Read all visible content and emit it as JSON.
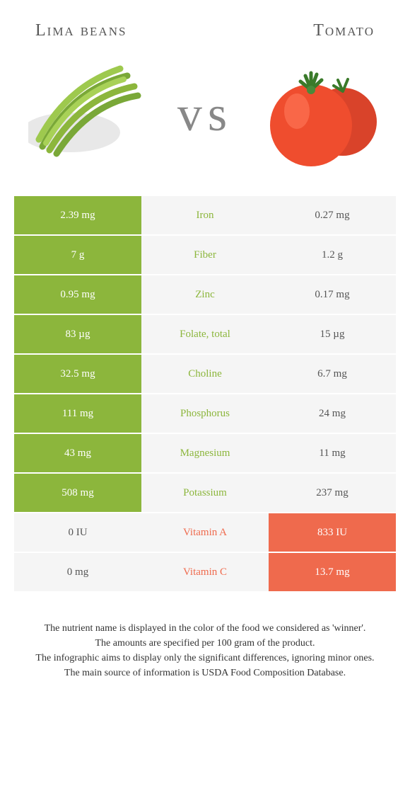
{
  "header": {
    "left_title": "Lima beans",
    "right_title": "Tomato",
    "vs": "vs"
  },
  "colors": {
    "left_winner_bg": "#8cb63c",
    "right_winner_bg": "#ef6a4d",
    "loser_bg": "#f5f5f5",
    "page_bg": "#ffffff",
    "text": "#333333",
    "title_text": "#555555",
    "vs_text": "#888888"
  },
  "comparison": {
    "rows": [
      {
        "nutrient": "Iron",
        "left": "2.39 mg",
        "right": "0.27 mg",
        "winner": "left"
      },
      {
        "nutrient": "Fiber",
        "left": "7 g",
        "right": "1.2 g",
        "winner": "left"
      },
      {
        "nutrient": "Zinc",
        "left": "0.95 mg",
        "right": "0.17 mg",
        "winner": "left"
      },
      {
        "nutrient": "Folate, total",
        "left": "83 µg",
        "right": "15 µg",
        "winner": "left"
      },
      {
        "nutrient": "Choline",
        "left": "32.5 mg",
        "right": "6.7 mg",
        "winner": "left"
      },
      {
        "nutrient": "Phosphorus",
        "left": "111 mg",
        "right": "24 mg",
        "winner": "left"
      },
      {
        "nutrient": "Magnesium",
        "left": "43 mg",
        "right": "11 mg",
        "winner": "left"
      },
      {
        "nutrient": "Potassium",
        "left": "508 mg",
        "right": "237 mg",
        "winner": "left"
      },
      {
        "nutrient": "Vitamin A",
        "left": "0 IU",
        "right": "833 IU",
        "winner": "right"
      },
      {
        "nutrient": "Vitamin C",
        "left": "0 mg",
        "right": "13.7 mg",
        "winner": "right"
      }
    ]
  },
  "footer": {
    "line1": "The nutrient name is displayed in the color of the food we considered as 'winner'.",
    "line2": "The amounts are specified per 100 gram of the product.",
    "line3": "The infographic aims to display only the significant differences, ignoring minor ones.",
    "line4": "The main source of information is USDA Food Composition Database."
  }
}
